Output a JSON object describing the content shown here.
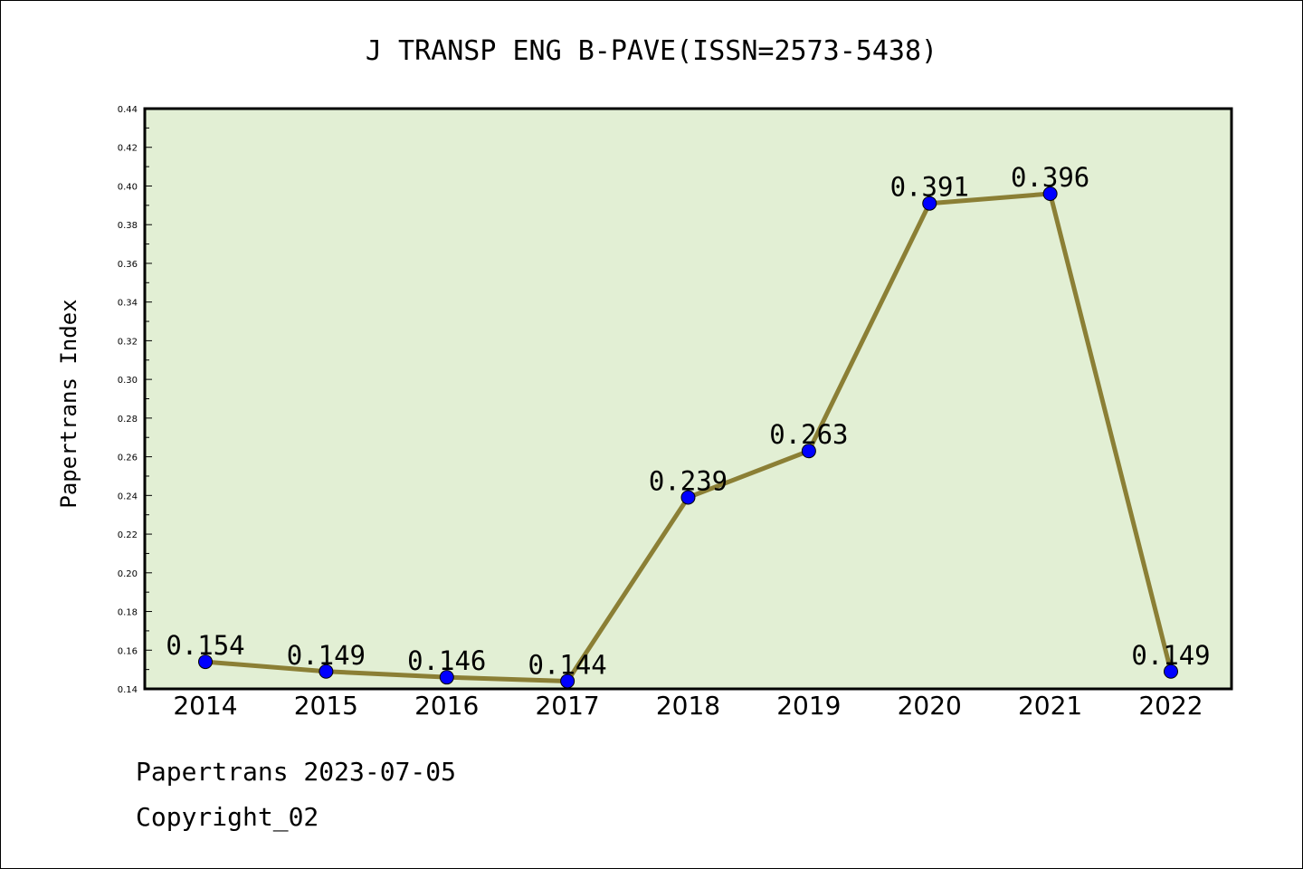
{
  "chart_data": {
    "type": "line",
    "title": "J TRANSP ENG B-PAVE(ISSN=2573-5438)",
    "ylabel": "Papertrans Index",
    "xlabel": "",
    "categories": [
      "2014",
      "2015",
      "2016",
      "2017",
      "2018",
      "2019",
      "2020",
      "2021",
      "2022"
    ],
    "values": [
      0.154,
      0.149,
      0.146,
      0.144,
      0.239,
      0.263,
      0.391,
      0.396,
      0.149
    ],
    "data_labels": [
      "0.154",
      "0.149",
      "0.146",
      "0.144",
      "0.239",
      "0.263",
      "0.391",
      "0.396",
      "0.149"
    ],
    "ylim": [
      0.14,
      0.44
    ],
    "yticks": [
      "0.14",
      "0.16",
      "0.18",
      "0.20",
      "0.22",
      "0.24",
      "0.26",
      "0.28",
      "0.30",
      "0.32",
      "0.34",
      "0.36",
      "0.38",
      "0.40",
      "0.42",
      "0.44"
    ],
    "grid": false,
    "colors": {
      "plot_background": "#e2efd4",
      "line": "#8b7f35",
      "marker": "#0000ff"
    }
  },
  "footer": {
    "source": "Papertrans 2023-07-05",
    "copyright": "Copyright_02"
  }
}
